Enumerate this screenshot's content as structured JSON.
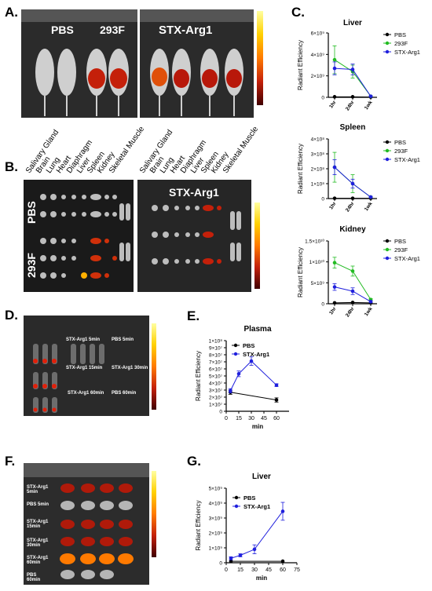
{
  "panel_letters": [
    "A.",
    "B.",
    "C.",
    "D.",
    "E.",
    "F.",
    "G."
  ],
  "panel_a": {
    "labels": [
      "PBS",
      "293F",
      "STX-Arg1"
    ]
  },
  "panel_b": {
    "organs": [
      "Salivary Gland",
      "Brain",
      "Lung",
      "Heart",
      "Diaphragm",
      "Liver",
      "Spleen",
      "Kidney",
      "Skeletal Muscle"
    ],
    "row_labels": [
      "PBS",
      "293F"
    ],
    "right_label": "STX-Arg1"
  },
  "panel_d": {
    "labels": [
      "STX-Arg1 5min",
      "PBS 5min",
      "STX-Arg1 15min",
      "STX-Arg1 30min",
      "STX-Arg1 60min",
      "PBS 60min"
    ]
  },
  "panel_f": {
    "labels": [
      "STX-Arg1 5min",
      "PBS 5min",
      "STX-Arg1 15min",
      "STX-Arg1 30min",
      "STX-Arg1 60min",
      "PBS 60min"
    ]
  },
  "chart_data": [
    {
      "id": "c_liver",
      "type": "line",
      "title": "Liver",
      "ylabel": "Radiant Efficiency",
      "xlabel": "",
      "categories": [
        "1hr",
        "24hr",
        "1wk"
      ],
      "yticks": [
        "0",
        "2×10⁹",
        "4×10⁹",
        "6×10⁹"
      ],
      "ylim": [
        0,
        6000000000.0
      ],
      "series": [
        {
          "name": "PBS",
          "color": "#000000",
          "values": [
            50000000.0,
            50000000.0,
            30000000.0
          ],
          "err": [
            0,
            0,
            0
          ]
        },
        {
          "name": "293F",
          "color": "#22bb22",
          "values": [
            3500000000.0,
            2400000000.0,
            100000000.0
          ],
          "err": [
            1300000000.0,
            600000000.0,
            50000000.0
          ]
        },
        {
          "name": "STX-Arg1",
          "color": "#1f1fdd",
          "values": [
            2700000000.0,
            2600000000.0,
            100000000.0
          ],
          "err": [
            600000000.0,
            500000000.0,
            50000000.0
          ]
        }
      ]
    },
    {
      "id": "c_spleen",
      "type": "line",
      "title": "Spleen",
      "ylabel": "Radiant Efficiency",
      "xlabel": "",
      "categories": [
        "1hr",
        "24hr",
        "1wk"
      ],
      "yticks": [
        "0",
        "1×10⁸",
        "2×10⁸",
        "3×10⁸",
        "4×10⁸"
      ],
      "ylim": [
        0,
        400000000.0
      ],
      "series": [
        {
          "name": "PBS",
          "color": "#000000",
          "values": [
            2000000.0,
            2000000.0,
            2000000.0
          ],
          "err": [
            0,
            0,
            0
          ]
        },
        {
          "name": "293F",
          "color": "#22bb22",
          "values": [
            210000000.0,
            100000000.0,
            10000000.0
          ],
          "err": [
            100000000.0,
            60000000.0,
            5000000.0
          ]
        },
        {
          "name": "STX-Arg1",
          "color": "#1f1fdd",
          "values": [
            210000000.0,
            100000000.0,
            10000000.0
          ],
          "err": [
            50000000.0,
            30000000.0,
            5000000.0
          ]
        }
      ]
    },
    {
      "id": "c_kidney",
      "type": "line",
      "title": "Kidney",
      "ylabel": "Radiant Efficiency",
      "xlabel": "",
      "categories": [
        "1hr",
        "24hr",
        "1wk"
      ],
      "yticks": [
        "0",
        "5×10⁹",
        "1×10¹⁰",
        "1.5×10¹⁰"
      ],
      "ylim": [
        0,
        15000000000.0
      ],
      "series": [
        {
          "name": "PBS",
          "color": "#000000",
          "values": [
            200000000.0,
            300000000.0,
            200000000.0
          ],
          "err": [
            0,
            0,
            0
          ]
        },
        {
          "name": "293F",
          "color": "#22bb22",
          "values": [
            9800000000.0,
            7800000000.0,
            1000000000.0
          ],
          "err": [
            1300000000.0,
            1200000000.0,
            200000000.0
          ]
        },
        {
          "name": "STX-Arg1",
          "color": "#1f1fdd",
          "values": [
            4000000000.0,
            3000000000.0,
            500000000.0
          ],
          "err": [
            800000000.0,
            800000000.0,
            200000000.0
          ]
        }
      ]
    },
    {
      "id": "e_plasma",
      "type": "line",
      "title": "Plasma",
      "ylabel": "Radiant Efficiency",
      "xlabel": "min",
      "xticks": [
        0,
        15,
        30,
        45,
        60
      ],
      "xlim": [
        0,
        75
      ],
      "yticks": [
        "0",
        "1×10⁷",
        "2×10⁷",
        "3×10⁷",
        "4×10⁷",
        "5×10⁷",
        "6×10⁷",
        "7×10⁷",
        "8×10⁷",
        "9×10⁷",
        "1×10⁸"
      ],
      "ylim": [
        0,
        100000000.0
      ],
      "series": [
        {
          "name": "PBS",
          "color": "#000000",
          "x": [
            5,
            60
          ],
          "values": [
            27000000.0,
            16000000.0
          ],
          "err": [
            3000000.0,
            3000000.0
          ]
        },
        {
          "name": "STX-Arg1",
          "color": "#1f1fdd",
          "x": [
            5,
            15,
            30,
            60
          ],
          "values": [
            29000000.0,
            53000000.0,
            71000000.0,
            37000000.0
          ],
          "err": [
            3000000.0,
            4000000.0,
            6000000.0,
            2000000.0
          ]
        }
      ]
    },
    {
      "id": "g_liver",
      "type": "line",
      "title": "Liver",
      "ylabel": "Radiant Efficiency",
      "xlabel": "min",
      "xticks": [
        0,
        15,
        30,
        45,
        60,
        75
      ],
      "xlim": [
        0,
        75
      ],
      "yticks": [
        "0",
        "1×10⁹",
        "2×10⁹",
        "3×10⁹",
        "4×10⁹",
        "5×10⁹"
      ],
      "ylim": [
        0,
        5000000000.0
      ],
      "series": [
        {
          "name": "PBS",
          "color": "#000000",
          "x": [
            5,
            60
          ],
          "values": [
            100000000.0,
            100000000.0
          ],
          "err": [
            0,
            0
          ]
        },
        {
          "name": "STX-Arg1",
          "color": "#1f1fdd",
          "x": [
            5,
            15,
            30,
            60
          ],
          "values": [
            300000000.0,
            500000000.0,
            900000000.0,
            3450000000.0
          ],
          "err": [
            100000000.0,
            100000000.0,
            300000000.0,
            600000000.0
          ]
        }
      ]
    }
  ]
}
